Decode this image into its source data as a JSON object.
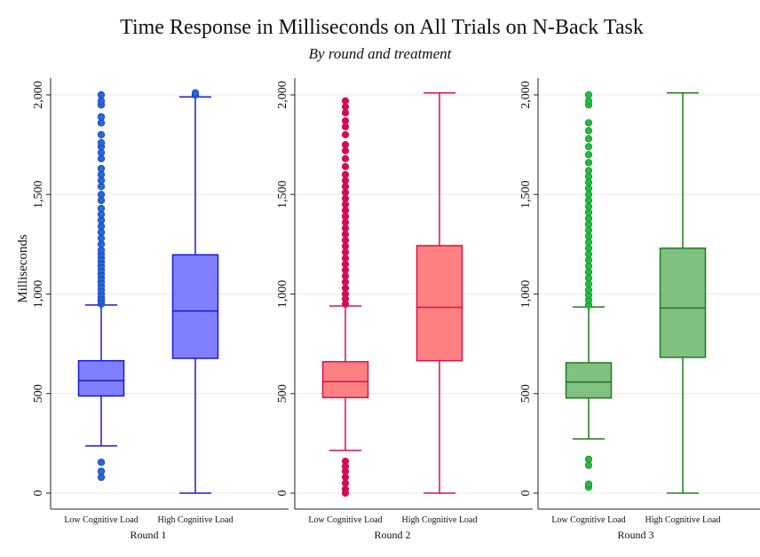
{
  "chart_data": {
    "type": "box",
    "title": "Time Response in Milliseconds on All Trials on N-Back Task",
    "subtitle": "By round and treatment",
    "ylabel": "Milliseconds",
    "ylim": [
      0,
      2000
    ],
    "yticks": [
      0,
      500,
      1000,
      1500,
      2000
    ],
    "ytick_labels": [
      "0",
      "500",
      "1,000",
      "1,500",
      "2,000"
    ],
    "categories": [
      "Low Cognitive Load",
      "High Cognitive Load"
    ],
    "panels": [
      {
        "xlabel": "Round 1",
        "color": "#1a1adc",
        "fill": "#8080ff",
        "outlier_color": "#1f6fd1",
        "boxes": [
          {
            "category": "Low Cognitive Load",
            "whisker_low": 237,
            "q1": 488,
            "median": 565,
            "q3": 665,
            "whisker_high": 945,
            "outliers": [
              80,
              110,
              155,
              950,
              965,
              980,
              1000,
              1020,
              1040,
              1060,
              1080,
              1100,
              1120,
              1140,
              1160,
              1180,
              1200,
              1220,
              1250,
              1280,
              1310,
              1340,
              1370,
              1400,
              1430,
              1470,
              1500,
              1540,
              1570,
              1600,
              1630,
              1680,
              1710,
              1740,
              1760,
              1800,
              1860,
              1890,
              1950,
              1970,
              2000
            ]
          },
          {
            "category": "High Cognitive Load",
            "whisker_low": 0,
            "q1": 677,
            "median": 915,
            "q3": 1197,
            "whisker_high": 1990,
            "outliers": [
              2000,
              2010
            ]
          }
        ]
      },
      {
        "xlabel": "Round 2",
        "color": "#d9134a",
        "fill": "#ff8080",
        "outlier_color": "#d10a5a",
        "boxes": [
          {
            "category": "Low Cognitive Load",
            "whisker_low": 215,
            "q1": 480,
            "median": 560,
            "q3": 660,
            "whisker_high": 940,
            "outliers": [
              0,
              20,
              50,
              80,
              110,
              135,
              160,
              950,
              975,
              1000,
              1030,
              1060,
              1090,
              1120,
              1150,
              1180,
              1210,
              1240,
              1270,
              1300,
              1330,
              1360,
              1390,
              1420,
              1450,
              1480,
              1510,
              1540,
              1570,
              1600,
              1640,
              1680,
              1720,
              1750,
              1800,
              1840,
              1870,
              1910,
              1940,
              1970
            ]
          },
          {
            "category": "High Cognitive Load",
            "whisker_low": 0,
            "q1": 665,
            "median": 933,
            "q3": 1243,
            "whisker_high": 2010,
            "outliers": []
          }
        ]
      },
      {
        "xlabel": "Round 3",
        "color": "#1e7b1e",
        "fill": "#80c080",
        "outlier_color": "#22bb44",
        "boxes": [
          {
            "category": "Low Cognitive Load",
            "whisker_low": 272,
            "q1": 478,
            "median": 558,
            "q3": 655,
            "whisker_high": 935,
            "outliers": [
              30,
              45,
              140,
              170,
              945,
              970,
              995,
              1020,
              1050,
              1080,
              1110,
              1140,
              1170,
              1200,
              1230,
              1260,
              1290,
              1320,
              1350,
              1380,
              1410,
              1440,
              1470,
              1500,
              1530,
              1560,
              1590,
              1620,
              1660,
              1700,
              1740,
              1780,
              1820,
              1860,
              1950,
              1970,
              2000
            ]
          },
          {
            "category": "High Cognitive Load",
            "whisker_low": 0,
            "q1": 682,
            "median": 930,
            "q3": 1230,
            "whisker_high": 2010,
            "outliers": []
          }
        ]
      }
    ]
  }
}
